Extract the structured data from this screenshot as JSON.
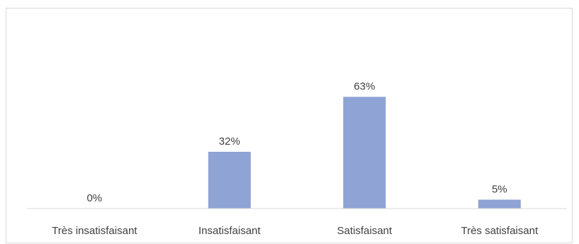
{
  "chart_data": {
    "type": "bar",
    "title": "",
    "xlabel": "",
    "ylabel": "",
    "categories": [
      "Très insatisfaisant",
      "Insatisfaisant",
      "Satisfaisant",
      "Très satisfaisant"
    ],
    "values": [
      0,
      32,
      63,
      5
    ],
    "data_labels": [
      "0%",
      "32%",
      "63%",
      "5%"
    ],
    "ylim": [
      0,
      100
    ],
    "grid": false,
    "legend": "none",
    "bar_color": "#8fa3d4",
    "axis_color": "#d9d9d9",
    "text_color": "#404040"
  }
}
